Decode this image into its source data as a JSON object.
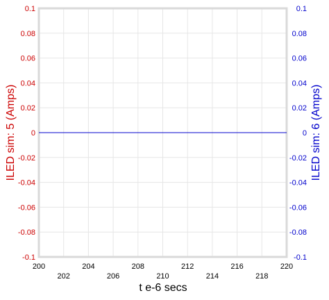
{
  "chart_data": {
    "type": "line",
    "title": "",
    "xlabel": "t e-6 secs",
    "ylabel_left": "ILED sim:  5 (Amps)",
    "ylabel_right": "ILED sim:  6 (Amps)",
    "xlim": [
      200,
      220
    ],
    "ylim": [
      -0.1,
      0.1
    ],
    "x_ticks": [
      200,
      202,
      204,
      206,
      208,
      210,
      212,
      214,
      216,
      218,
      220
    ],
    "y_ticks": [
      0.1,
      0.08,
      0.06,
      0.04,
      0.02,
      0,
      -0.02,
      -0.04,
      -0.06,
      -0.08,
      -0.1
    ],
    "y_tick_labels": [
      "0.1",
      "0.08",
      "0.06",
      "0.04",
      "0.02",
      "0",
      "-0.02",
      "-0.04",
      "-0.06",
      "-0.08",
      "-0.1"
    ],
    "grid": true,
    "colors": {
      "left_axis": "#cc0000",
      "right_axis": "#0000cc",
      "frame": "#d9d9d9",
      "grid": "#e6e6e6"
    },
    "series": [
      {
        "axis": "right",
        "color": "#0000cc",
        "x": [
          200,
          220
        ],
        "y": [
          0,
          0
        ]
      }
    ]
  }
}
